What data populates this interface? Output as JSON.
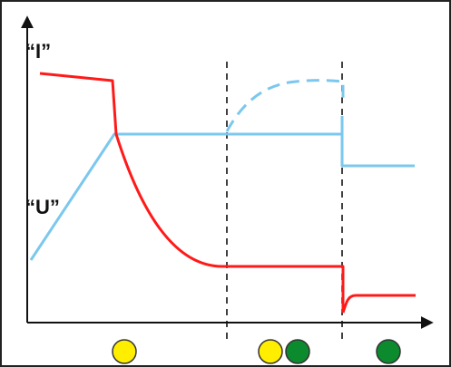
{
  "labels": {
    "current": "“I”",
    "voltage": "“U”"
  },
  "colors": {
    "current_curve": "#ff1a1a",
    "voltage_curve": "#7cc7ee",
    "axis": "#111111",
    "phase_divider": "#111111",
    "indicator_yellow": "#ffee00",
    "indicator_green": "#0b8a2e"
  },
  "phases": [
    {
      "indicators": [
        "yellow"
      ]
    },
    {
      "indicators": [
        "yellow",
        "green"
      ]
    },
    {
      "indicators": [
        "green"
      ]
    }
  ]
}
